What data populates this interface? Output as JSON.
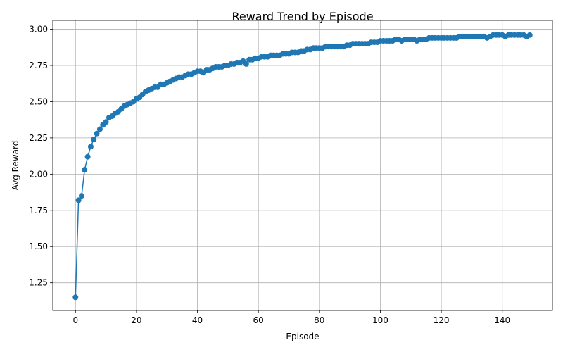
{
  "chart_data": {
    "type": "line",
    "title": "Reward Trend by Episode",
    "xlabel": "Episode",
    "ylabel": "Avg Reward",
    "xlim": [
      -7.45,
      156.45
    ],
    "ylim": [
      1.059,
      3.061
    ],
    "xticks": [
      0,
      20,
      40,
      60,
      80,
      100,
      120,
      140
    ],
    "yticks": [
      1.25,
      1.5,
      1.75,
      2.0,
      2.25,
      2.5,
      2.75,
      3.0
    ],
    "xtick_labels": [
      "0",
      "20",
      "40",
      "60",
      "80",
      "100",
      "120",
      "140"
    ],
    "ytick_labels": [
      "1.25",
      "1.50",
      "1.75",
      "2.00",
      "2.25",
      "2.50",
      "2.75",
      "3.00"
    ],
    "grid": true,
    "marker": "circle",
    "color": "#1f77b4",
    "series": [
      {
        "x": [
          0,
          1,
          2,
          3,
          4,
          5,
          6,
          7,
          8,
          9,
          10,
          11,
          12,
          13,
          14,
          15,
          16,
          17,
          18,
          19,
          20,
          21,
          22,
          23,
          24,
          25,
          26,
          27,
          28,
          29,
          30,
          31,
          32,
          33,
          34,
          35,
          36,
          37,
          38,
          39,
          40,
          41,
          42,
          43,
          44,
          45,
          46,
          47,
          48,
          49,
          50,
          51,
          52,
          53,
          54,
          55,
          56,
          57,
          58,
          59,
          60,
          61,
          62,
          63,
          64,
          65,
          66,
          67,
          68,
          69,
          70,
          71,
          72,
          73,
          74,
          75,
          76,
          77,
          78,
          79,
          80,
          81,
          82,
          83,
          84,
          85,
          86,
          87,
          88,
          89,
          90,
          91,
          92,
          93,
          94,
          95,
          96,
          97,
          98,
          99,
          100,
          101,
          102,
          103,
          104,
          105,
          106,
          107,
          108,
          109,
          110,
          111,
          112,
          113,
          114,
          115,
          116,
          117,
          118,
          119,
          120,
          121,
          122,
          123,
          124,
          125,
          126,
          127,
          128,
          129,
          130,
          131,
          132,
          133,
          134,
          135,
          136,
          137,
          138,
          139,
          140,
          141,
          142,
          143,
          144,
          145,
          146,
          147,
          148,
          149
        ],
        "values": [
          1.15,
          1.82,
          1.85,
          2.03,
          2.12,
          2.19,
          2.24,
          2.28,
          2.31,
          2.34,
          2.36,
          2.39,
          2.4,
          2.42,
          2.43,
          2.45,
          2.47,
          2.48,
          2.49,
          2.5,
          2.52,
          2.53,
          2.55,
          2.57,
          2.58,
          2.59,
          2.6,
          2.6,
          2.62,
          2.62,
          2.63,
          2.64,
          2.65,
          2.66,
          2.67,
          2.67,
          2.68,
          2.69,
          2.69,
          2.7,
          2.71,
          2.71,
          2.7,
          2.72,
          2.72,
          2.73,
          2.74,
          2.74,
          2.74,
          2.75,
          2.75,
          2.76,
          2.76,
          2.77,
          2.77,
          2.78,
          2.76,
          2.79,
          2.79,
          2.8,
          2.8,
          2.81,
          2.81,
          2.81,
          2.82,
          2.82,
          2.82,
          2.82,
          2.83,
          2.83,
          2.83,
          2.84,
          2.84,
          2.84,
          2.85,
          2.85,
          2.86,
          2.86,
          2.87,
          2.87,
          2.87,
          2.87,
          2.88,
          2.88,
          2.88,
          2.88,
          2.88,
          2.88,
          2.88,
          2.89,
          2.89,
          2.9,
          2.9,
          2.9,
          2.9,
          2.9,
          2.9,
          2.91,
          2.91,
          2.91,
          2.92,
          2.92,
          2.92,
          2.92,
          2.92,
          2.93,
          2.93,
          2.92,
          2.93,
          2.93,
          2.93,
          2.93,
          2.92,
          2.93,
          2.93,
          2.93,
          2.94,
          2.94,
          2.94,
          2.94,
          2.94,
          2.94,
          2.94,
          2.94,
          2.94,
          2.94,
          2.95,
          2.95,
          2.95,
          2.95,
          2.95,
          2.95,
          2.95,
          2.95,
          2.95,
          2.94,
          2.95,
          2.96,
          2.96,
          2.96,
          2.96,
          2.95,
          2.96,
          2.96,
          2.96,
          2.96,
          2.96,
          2.96,
          2.95,
          2.96
        ]
      }
    ]
  }
}
